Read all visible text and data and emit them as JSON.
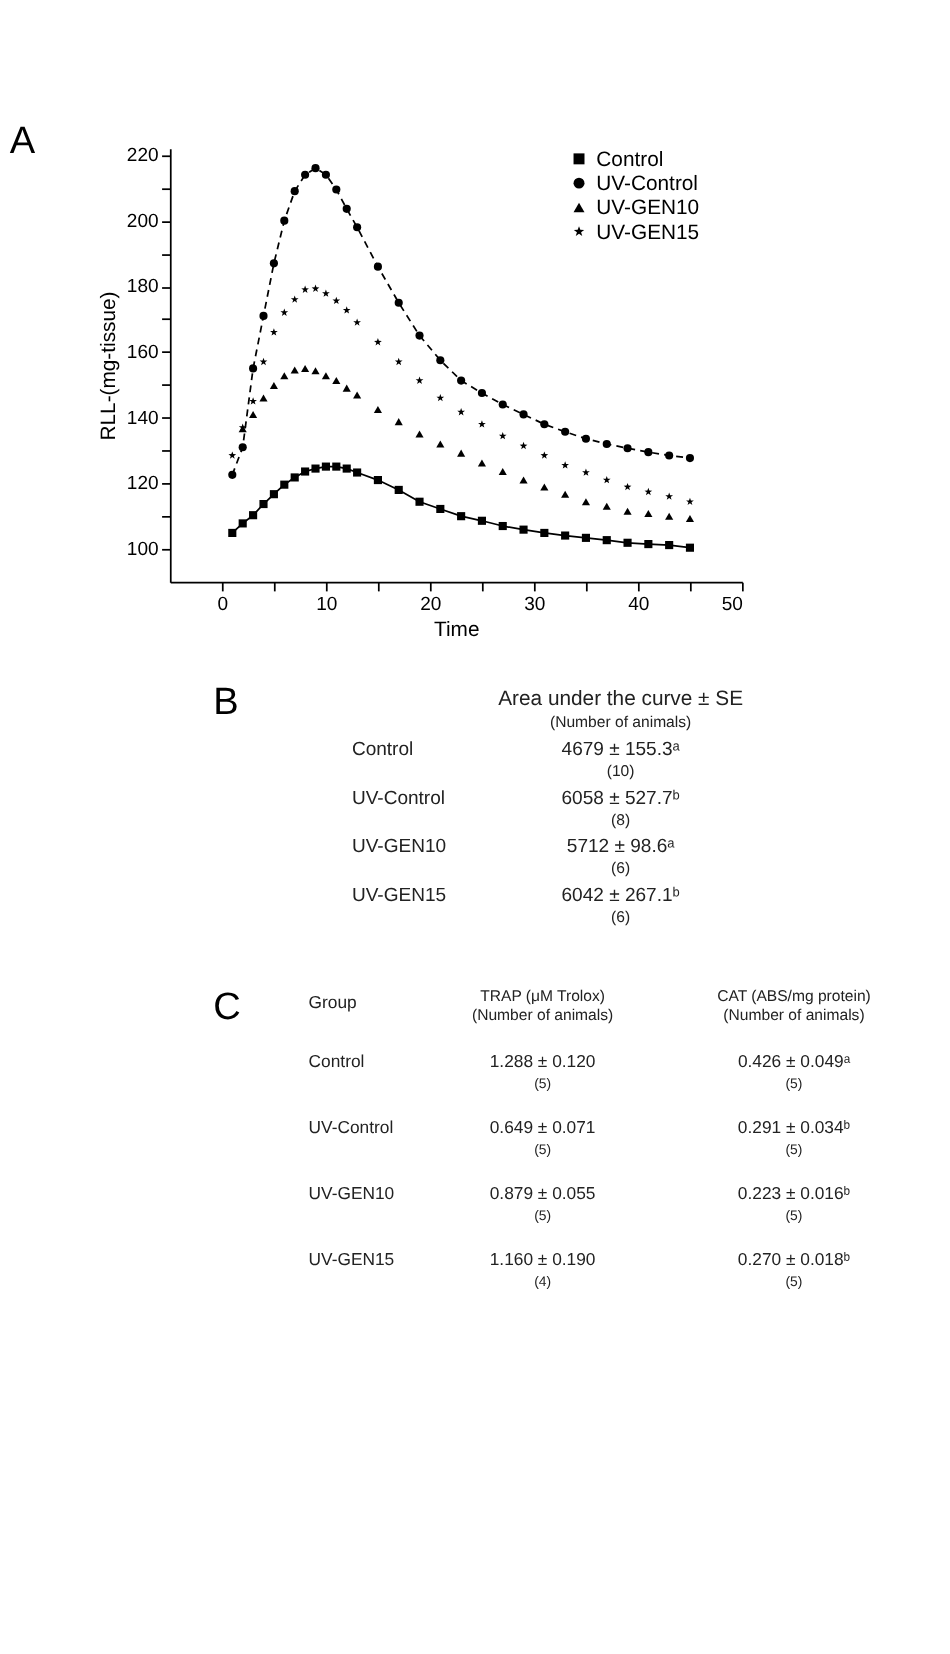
{
  "chart_data": [
    {
      "type": "line",
      "title": "A",
      "xlabel": "Time",
      "ylabel": "RLL-(mg-tissue)",
      "x": [
        1,
        2,
        3,
        4,
        5,
        6,
        7,
        8,
        9,
        10,
        11,
        12,
        13,
        15,
        17,
        19,
        21,
        23,
        25,
        27,
        29,
        31,
        33,
        35,
        37,
        39,
        41,
        43,
        45
      ],
      "series": [
        {
          "name": "Control",
          "type": "line",
          "color": "#000000",
          "marker": "square",
          "line_style": "solid",
          "values": [
            104.9,
            107.8,
            110.3,
            113.7,
            116.7,
            119.6,
            121.8,
            123.6,
            124.5,
            125.1,
            125.1,
            124.5,
            123.3,
            121,
            118,
            114.4,
            112.2,
            110,
            108.6,
            107,
            105.9,
            104.9,
            104.1,
            103.4,
            102.7,
            101.9,
            101.5,
            101.2,
            100.4
          ]
        },
        {
          "name": "UV-Control",
          "type": "line",
          "color": "#000000",
          "marker": "circle",
          "line_style": "dashed",
          "values": [
            122.6,
            131,
            155,
            171,
            187,
            200,
            209,
            214,
            216,
            214,
            209.5,
            203.6,
            198,
            186,
            175,
            165,
            157.5,
            151.3,
            147.5,
            144,
            141,
            138,
            135.7,
            133.6,
            132,
            130.7,
            129.5,
            128.5,
            127.7
          ]
        },
        {
          "name": "UV-GEN10",
          "type": "scatter",
          "color": "#000000",
          "marker": "triangle",
          "values": [
            null,
            136.6,
            141,
            146,
            149.8,
            152.8,
            154.5,
            155,
            154.3,
            152.8,
            151.3,
            149,
            146.9,
            142.5,
            138.8,
            135,
            132,
            129.2,
            126.2,
            123.6,
            121,
            118.9,
            116.7,
            114.4,
            113,
            111.5,
            110.8,
            110,
            109.3
          ]
        },
        {
          "name": "UV-GEN15",
          "type": "scatter",
          "color": "#000000",
          "marker": "star",
          "values": [
            128.5,
            137,
            145,
            157,
            166,
            172,
            176,
            179,
            179.3,
            177.8,
            175.6,
            172.7,
            169,
            163,
            157,
            151.3,
            146,
            141.7,
            138,
            134.4,
            131.4,
            128.5,
            125.5,
            123.3,
            121,
            118.9,
            117.4,
            116,
            114.4
          ]
        }
      ],
      "xlim": [
        -5,
        50
      ],
      "xticks": [
        0,
        {
          "value": 5,
          "label": null
        },
        10,
        {
          "value": 15,
          "label": null
        },
        20,
        {
          "value": 25,
          "label": null
        },
        30,
        {
          "value": 35,
          "label": null
        },
        40,
        {
          "value": 45,
          "label": null
        },
        50
      ],
      "ylim": [
        90,
        222
      ],
      "yticks": [
        100,
        {
          "value": 110,
          "label": null
        },
        120,
        {
          "value": 130,
          "label": null
        },
        140,
        {
          "value": 150,
          "label": null
        },
        160,
        {
          "value": 170,
          "label": null
        },
        180,
        {
          "value": 190,
          "label": null
        },
        200,
        {
          "value": 210,
          "label": null
        },
        220
      ],
      "grid": false,
      "legend": "top right"
    },
    {
      "type": "other",
      "title": "B",
      "annotations": [
        "Area under the curve ± SE",
        "(Number of animals)",
        "Control",
        "4679 ± 155.3ᵃ",
        "(10)",
        "UV-Control",
        "6058 ± 527.7ᵇ",
        "(8)",
        "UV-GEN10",
        "5712 ± 98.6ᵃ",
        "(6)",
        "UV-GEN15",
        "6042 ± 267.1ᵇ",
        "(6)"
      ]
    },
    {
      "type": "other",
      "title": "C",
      "annotations": [
        "Group",
        "TRAP (μM Trolox)",
        "(Number of animals)",
        "CAT (ABS/mg protein)",
        "(Number of animals)",
        "Control",
        "1.288 ± 0.120",
        "(5)",
        "0.426 ± 0.049ᵃ",
        "(5)",
        "UV-Control",
        "0.649 ± 0.071",
        "(5)",
        "0.291 ± 0.034ᵇ",
        "(5)",
        "UV-GEN10",
        "0.879 ± 0.055",
        "(5)",
        "0.223 ± 0.016ᵇ",
        "(5)",
        "UV-GEN15",
        "1.160 ± 0.190",
        "(4)",
        "0.270 ± 0.018ᵇ",
        "(5)"
      ]
    }
  ]
}
